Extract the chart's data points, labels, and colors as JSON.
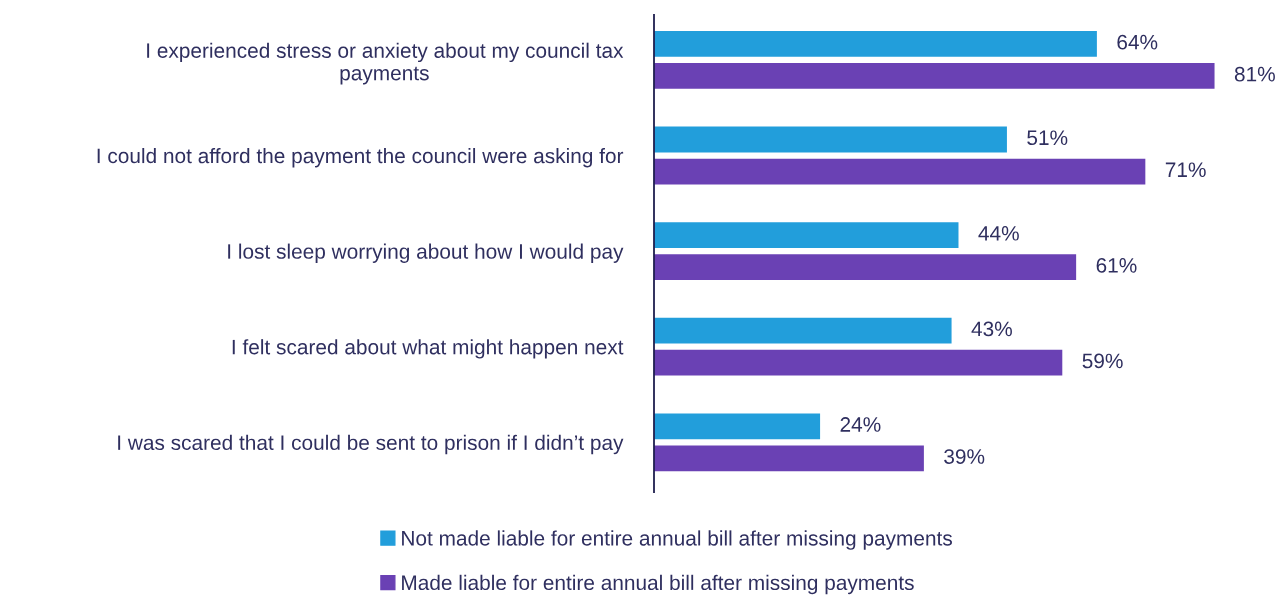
{
  "chart_data": {
    "type": "bar",
    "orientation": "horizontal",
    "categories": [
      "I experienced stress or anxiety about my council tax\npayments",
      "I could not afford the payment the council were asking for",
      "I lost sleep worrying about how I would pay",
      "I felt scared about what might happen next",
      "I was scared that I could be sent to prison if I didn’t pay"
    ],
    "series": [
      {
        "name": "Not made liable for entire annual bill after missing payments",
        "color": "#229edb",
        "values": [
          64,
          51,
          44,
          43,
          24
        ],
        "value_labels": [
          "64%",
          "51%",
          "44%",
          "43%",
          "24%"
        ]
      },
      {
        "name": "Made liable for entire annual bill after missing payments",
        "color": "#6a41b4",
        "values": [
          81,
          71,
          61,
          59,
          39
        ],
        "value_labels": [
          "81%",
          "71%",
          "61%",
          "59%",
          "39%"
        ]
      }
    ],
    "legend": "bottom",
    "grid": false
  }
}
